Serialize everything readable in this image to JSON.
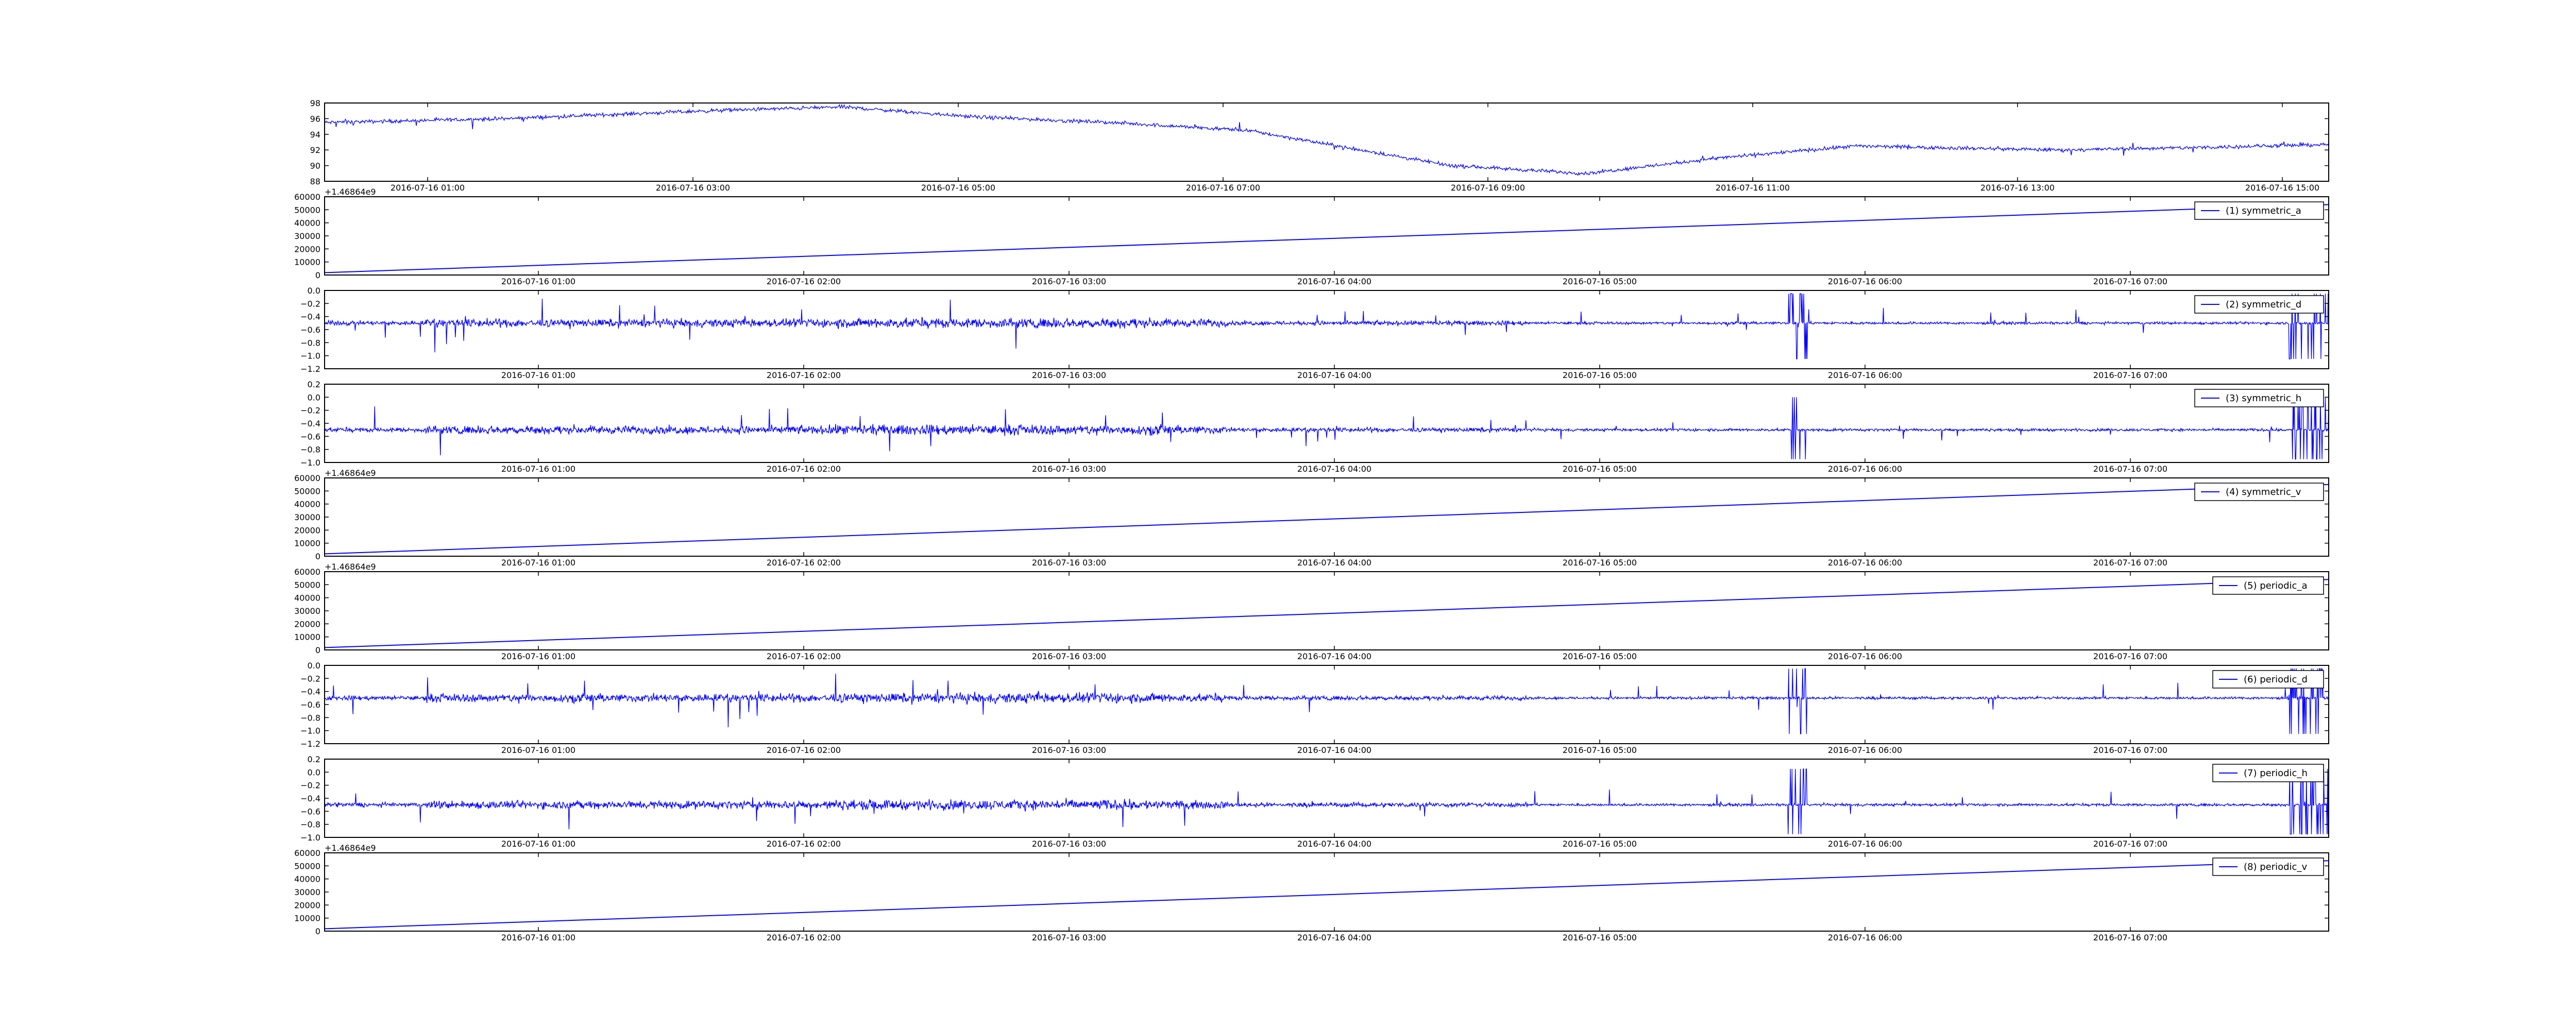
{
  "figure": {
    "line_color": "#0000ff",
    "axes_color": "#000000",
    "background": "#ffffff"
  },
  "chart_data": [
    {
      "type": "line",
      "legend": null,
      "xlim": [
        "2016-07-16 00:10",
        "2016-07-16 15:00"
      ],
      "xtick_labels": [
        "2016-07-16 01:00",
        "2016-07-16 03:00",
        "2016-07-16 05:00",
        "2016-07-16 07:00",
        "2016-07-16 09:00",
        "2016-07-16 11:00",
        "2016-07-16 13:00",
        "2016-07-16 15:00"
      ],
      "ylim": [
        88,
        98
      ],
      "ytick_labels": [
        "88",
        "90",
        "92",
        "94",
        "96",
        "98"
      ],
      "series": [
        {
          "shape": "price",
          "points": [
            [
              "00:10",
              95.5
            ],
            [
              "01:30",
              96.0
            ],
            [
              "03:00",
              97.0
            ],
            [
              "04:00",
              97.5
            ],
            [
              "05:00",
              96.2
            ],
            [
              "06:00",
              95.5
            ],
            [
              "07:00",
              94.5
            ],
            [
              "07:40",
              92.5
            ],
            [
              "08:30",
              90.0
            ],
            [
              "09:30",
              89.0
            ],
            [
              "10:30",
              91.0
            ],
            [
              "11:30",
              92.5
            ],
            [
              "13:00",
              92.0
            ],
            [
              "14:00",
              92.3
            ],
            [
              "15:00",
              92.7
            ]
          ]
        }
      ]
    },
    {
      "type": "line",
      "legend": "(1) symmetric_a",
      "offset_text": "+1.46864e9",
      "xtick_labels": [
        "2016-07-16 01:00",
        "2016-07-16 02:00",
        "2016-07-16 03:00",
        "2016-07-16 04:00",
        "2016-07-16 05:00",
        "2016-07-16 06:00",
        "2016-07-16 07:00"
      ],
      "ylim": [
        0,
        60000
      ],
      "ytick_labels": [
        "0",
        "10000",
        "20000",
        "30000",
        "40000",
        "50000",
        "60000"
      ],
      "series": [
        {
          "shape": "ramp",
          "start": 1800,
          "end": 54000
        }
      ]
    },
    {
      "type": "line",
      "legend": "(2) symmetric_d",
      "xtick_labels": [
        "2016-07-16 01:00",
        "2016-07-16 02:00",
        "2016-07-16 03:00",
        "2016-07-16 04:00",
        "2016-07-16 05:00",
        "2016-07-16 06:00",
        "2016-07-16 07:00"
      ],
      "ylim": [
        -1.2,
        0.0
      ],
      "ytick_labels": [
        "−1.2",
        "−1.0",
        "−0.8",
        "−0.6",
        "−0.4",
        "−0.2",
        "0.0"
      ],
      "series": [
        {
          "shape": "noise",
          "baseline": -0.5,
          "min": -1.05,
          "max": -0.05
        }
      ]
    },
    {
      "type": "line",
      "legend": "(3) symmetric_h",
      "xtick_labels": [
        "2016-07-16 01:00",
        "2016-07-16 02:00",
        "2016-07-16 03:00",
        "2016-07-16 04:00",
        "2016-07-16 05:00",
        "2016-07-16 06:00",
        "2016-07-16 07:00"
      ],
      "ylim": [
        -1.0,
        0.2
      ],
      "ytick_labels": [
        "−1.0",
        "−0.8",
        "−0.6",
        "−0.4",
        "−0.2",
        "0.0",
        "0.2"
      ],
      "series": [
        {
          "shape": "noise",
          "baseline": -0.5,
          "min": -0.95,
          "max": 0.0
        }
      ]
    },
    {
      "type": "line",
      "legend": "(4) symmetric_v",
      "offset_text": "+1.46864e9",
      "xtick_labels": [
        "2016-07-16 01:00",
        "2016-07-16 02:00",
        "2016-07-16 03:00",
        "2016-07-16 04:00",
        "2016-07-16 05:00",
        "2016-07-16 06:00",
        "2016-07-16 07:00"
      ],
      "ylim": [
        0,
        60000
      ],
      "ytick_labels": [
        "0",
        "10000",
        "20000",
        "30000",
        "40000",
        "50000",
        "60000"
      ],
      "series": [
        {
          "shape": "ramp",
          "start": 1800,
          "end": 55000
        }
      ]
    },
    {
      "type": "line",
      "legend": "(5) periodic_a",
      "offset_text": "+1.46864e9",
      "xtick_labels": [
        "2016-07-16 01:00",
        "2016-07-16 02:00",
        "2016-07-16 03:00",
        "2016-07-16 04:00",
        "2016-07-16 05:00",
        "2016-07-16 06:00",
        "2016-07-16 07:00"
      ],
      "ylim": [
        0,
        60000
      ],
      "ytick_labels": [
        "0",
        "10000",
        "20000",
        "30000",
        "40000",
        "50000",
        "60000"
      ],
      "series": [
        {
          "shape": "ramp",
          "start": 1800,
          "end": 54000
        }
      ]
    },
    {
      "type": "line",
      "legend": "(6) periodic_d",
      "xtick_labels": [
        "2016-07-16 01:00",
        "2016-07-16 02:00",
        "2016-07-16 03:00",
        "2016-07-16 04:00",
        "2016-07-16 05:00",
        "2016-07-16 06:00",
        "2016-07-16 07:00"
      ],
      "ylim": [
        -1.2,
        0.0
      ],
      "ytick_labels": [
        "−1.2",
        "−1.0",
        "−0.8",
        "−0.6",
        "−0.4",
        "−0.2",
        "0.0"
      ],
      "series": [
        {
          "shape": "noise",
          "baseline": -0.5,
          "min": -1.05,
          "max": -0.05
        }
      ]
    },
    {
      "type": "line",
      "legend": "(7) periodic_h",
      "xtick_labels": [
        "2016-07-16 01:00",
        "2016-07-16 02:00",
        "2016-07-16 03:00",
        "2016-07-16 04:00",
        "2016-07-16 05:00",
        "2016-07-16 06:00",
        "2016-07-16 07:00"
      ],
      "ylim": [
        -1.0,
        0.2
      ],
      "ytick_labels": [
        "−1.0",
        "−0.8",
        "−0.6",
        "−0.4",
        "−0.2",
        "0.0",
        "0.2"
      ],
      "series": [
        {
          "shape": "noise",
          "baseline": -0.5,
          "min": -0.95,
          "max": 0.05
        }
      ]
    },
    {
      "type": "line",
      "legend": "(8) periodic_v",
      "offset_text": "+1.46864e9",
      "xtick_labels": [
        "2016-07-16 01:00",
        "2016-07-16 02:00",
        "2016-07-16 03:00",
        "2016-07-16 04:00",
        "2016-07-16 05:00",
        "2016-07-16 06:00",
        "2016-07-16 07:00"
      ],
      "ylim": [
        0,
        60000
      ],
      "ytick_labels": [
        "0",
        "10000",
        "20000",
        "30000",
        "40000",
        "50000",
        "60000"
      ],
      "series": [
        {
          "shape": "ramp",
          "start": 1800,
          "end": 54000
        }
      ]
    }
  ]
}
